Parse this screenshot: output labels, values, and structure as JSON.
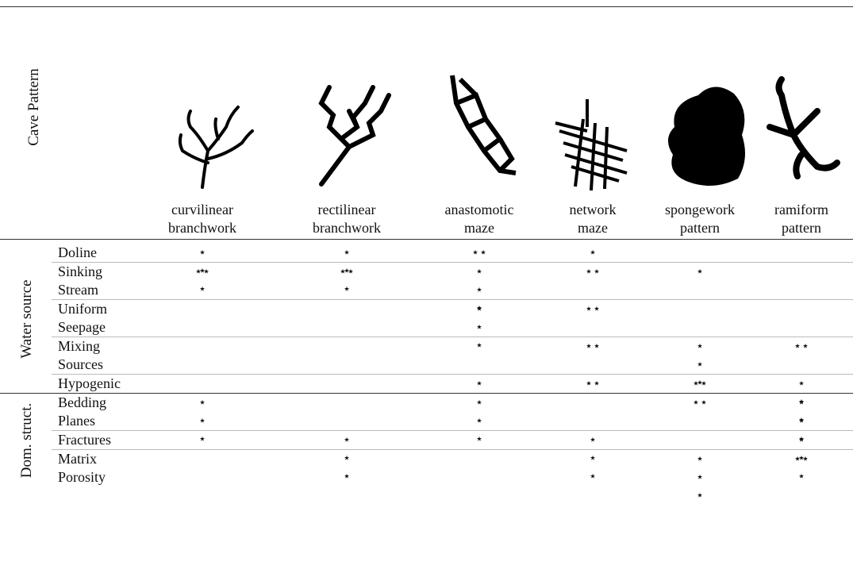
{
  "header": {
    "corner_label": "Cave Pattern",
    "columns": [
      "curvilinear branchwork",
      "rectilinear branchwork",
      "anastomotic maze",
      "network maze",
      "spongework pattern",
      "ramiform pattern"
    ]
  },
  "groups": [
    {
      "label": "Water source",
      "rows": [
        {
          "label": "Doline",
          "cells": [
            "⋆ ⋆ ⋆",
            "⋆ ⋆ ⋆",
            "⋆⋆",
            "⋆",
            null,
            null
          ]
        },
        {
          "label": "Sinking Stream",
          "cells": [
            "⋆⋆",
            "⋆⋆",
            "⋆ ⋆ ⋆",
            "⋆⋆",
            "⋆",
            null
          ]
        },
        {
          "label": "Uniform Seepage",
          "cells": [
            null,
            null,
            "⋆ ⋆ ⋆",
            "⋆⋆",
            null,
            null
          ]
        },
        {
          "label": "Mixing Sources",
          "cells": [
            null,
            null,
            null,
            "⋆⋆",
            "⋆ ⋆ ⋆",
            "⋆⋆"
          ]
        },
        {
          "label": "Hypogenic",
          "cells": [
            null,
            null,
            "⋆",
            "⋆⋆",
            "⋆⋆",
            "⋆ ⋆ ⋆"
          ]
        }
      ]
    },
    {
      "label": "Dom. struct.",
      "rows": [
        {
          "label": "Bedding Planes",
          "cells": [
            "⋆ ⋆ ⋆",
            null,
            "⋆ ⋆ ⋆",
            null,
            "⋆⋆",
            "⋆ ⋆ ⋆"
          ]
        },
        {
          "label": "Fractures",
          "cells": [
            null,
            "⋆ ⋆ ⋆",
            null,
            "⋆ ⋆ ⋆",
            null,
            "⋆ ⋆ ⋆"
          ]
        },
        {
          "label": "Matrix Porosity",
          "cells": [
            null,
            null,
            null,
            null,
            "⋆ ⋆ ⋆",
            "⋆⋆"
          ]
        }
      ]
    }
  ]
}
